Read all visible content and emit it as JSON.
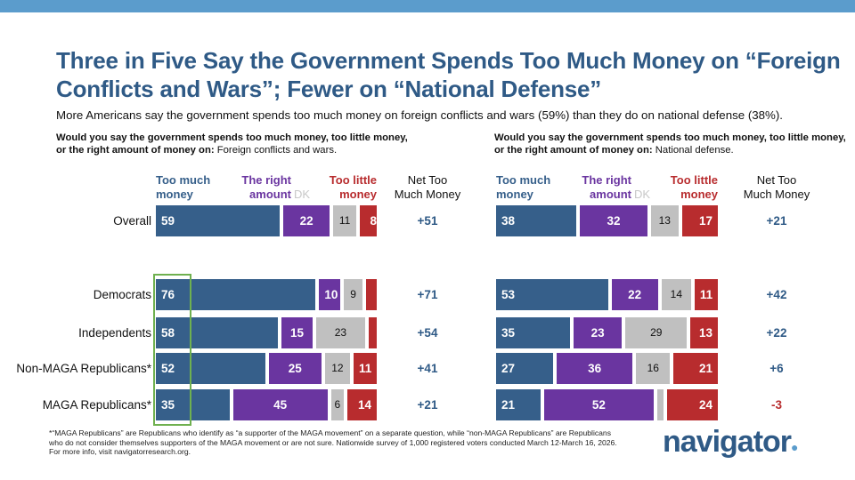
{
  "title": "Three in Five Say the Government Spends Too Much Money on “Foreign Conflicts and Wars”; Fewer on “National Defense”",
  "subtitle": "More Americans say the government spends too much money on foreign conflicts and wars (59%) than they do on national defense (38%).",
  "footnote": "*“MAGA Republicans” are Republicans who identify as “a supporter of the MAGA movement” on a separate question, while “non-MAGA Republicans” are Republicans who do not consider themselves supporters of the MAGA movement or are not sure. Nationwide survey of 1,000 registered voters conducted March 12-March 16, 2026. For more info, visit navigatorresearch.org.",
  "logo": "navigator",
  "legend": {
    "too_much": "Too much money",
    "right": "The right amount",
    "dk": "DK",
    "too_little": "Too little money",
    "net": "Net Too Much Money"
  },
  "colors": {
    "too_much": "#365f8a",
    "right": "#6a35a0",
    "dk": "#c0c0c0",
    "too_little": "#b82c2e",
    "net_pos": "#2f5a86",
    "net_neg": "#b82c2e",
    "highlight": "#6fb04f"
  },
  "chart_data": [
    {
      "type": "bar",
      "stacked": true,
      "orientation": "horizontal",
      "question_bold": "Would you say the government spends too much money, too little money, or the right amount of money on:",
      "question_item": "Foreign conflicts and wars.",
      "categories": [
        "Overall",
        "Democrats",
        "Independents",
        "Non-MAGA Republicans*",
        "MAGA Republicans*"
      ],
      "series": [
        {
          "name": "Too much money",
          "values": [
            59,
            76,
            58,
            52,
            35
          ]
        },
        {
          "name": "The right amount",
          "values": [
            22,
            10,
            15,
            25,
            45
          ]
        },
        {
          "name": "DK",
          "values": [
            11,
            9,
            23,
            12,
            6
          ]
        },
        {
          "name": "Too little money",
          "values": [
            8,
            5,
            4,
            11,
            14
          ],
          "labels": [
            "8",
            null,
            null,
            "11",
            "14"
          ]
        }
      ],
      "net": [
        "+51",
        "+71",
        "+54",
        "+41",
        "+21"
      ]
    },
    {
      "type": "bar",
      "stacked": true,
      "orientation": "horizontal",
      "question_bold": "Would you say the government spends too much money, too little money, or the right amount of money on:",
      "question_item": "National defense.",
      "categories": [
        "Overall",
        "Democrats",
        "Independents",
        "Non-MAGA Republicans*",
        "MAGA Republicans*"
      ],
      "series": [
        {
          "name": "Too much money",
          "values": [
            38,
            53,
            35,
            27,
            21
          ]
        },
        {
          "name": "The right amount",
          "values": [
            32,
            22,
            23,
            36,
            52
          ]
        },
        {
          "name": "DK",
          "values": [
            13,
            14,
            29,
            16,
            3
          ],
          "labels": [
            "13",
            "14",
            "29",
            "16",
            null
          ]
        },
        {
          "name": "Too little money",
          "values": [
            17,
            11,
            13,
            21,
            24
          ]
        }
      ],
      "net": [
        "+21",
        "+42",
        "+22",
        "+6",
        "-3"
      ]
    }
  ]
}
